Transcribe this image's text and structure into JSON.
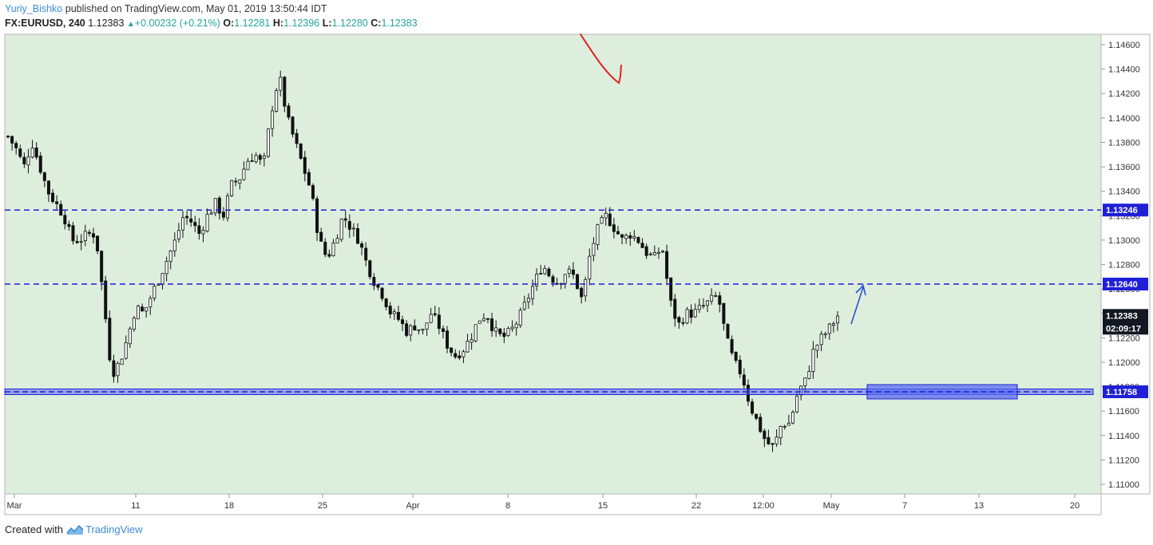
{
  "header": {
    "author": "Yuriy_Bishko",
    "published_text": "published on TradingView.com, May 01, 2019 13:50:44 IDT",
    "symbol": "FX:EURUSD, 240",
    "last": "1.12383",
    "change": "+0.00232 (+0.21%)",
    "o_label": "O:",
    "o_value": "1.12281",
    "h_label": "H:",
    "h_value": "1.12396",
    "l_label": "L:",
    "l_value": "1.12280",
    "c_label": "C:",
    "c_value": "1.12383",
    "up_icon": "triangle-up-icon"
  },
  "footer": {
    "created_with": "Created with",
    "brand": "TradingView",
    "logo_icon": "tradingview-logo-icon"
  },
  "colors": {
    "background": "#ddeedd",
    "candle": "#111111",
    "level_line": "#1f1fd6",
    "zone_fill": "#5a6cf0",
    "arrow_up": "#2b4fd6",
    "arrow_red": "#e02020",
    "label_blue": "#1f1fd6",
    "label_dark": "#131722"
  },
  "chart_data": {
    "type": "candlestick",
    "symbol": "FX:EURUSD",
    "interval": "240",
    "ylim": [
      1.109,
      1.147
    ],
    "y_ticks": [
      "1.14600",
      "1.14400",
      "1.14200",
      "1.14000",
      "1.13800",
      "1.13600",
      "1.13400",
      "1.13200",
      "1.13000",
      "1.12800",
      "1.12600",
      "1.12400",
      "1.12200",
      "1.12000",
      "1.11800",
      "1.11600",
      "1.11400",
      "1.11200",
      "1.11000"
    ],
    "x_ticks": [
      "Mar",
      "11",
      "18",
      "25",
      "Apr",
      "8",
      "15",
      "22",
      "12:00",
      "May",
      "7",
      "13",
      "20"
    ],
    "close_path": [
      1.1385,
      1.1375,
      1.136,
      1.138,
      1.136,
      1.134,
      1.133,
      1.132,
      1.13,
      1.13,
      1.1305,
      1.1305,
      1.125,
      1.119,
      1.12,
      1.122,
      1.1245,
      1.124,
      1.1255,
      1.127,
      1.1285,
      1.13,
      1.132,
      1.1315,
      1.1305,
      1.132,
      1.133,
      1.132,
      1.1345,
      1.135,
      1.1365,
      1.137,
      1.136,
      1.1405,
      1.1435,
      1.14,
      1.138,
      1.136,
      1.134,
      1.13,
      1.1285,
      1.13,
      1.132,
      1.131,
      1.13,
      1.128,
      1.1265,
      1.1255,
      1.124,
      1.1235,
      1.1225,
      1.123,
      1.1225,
      1.124,
      1.123,
      1.1215,
      1.1205,
      1.121,
      1.122,
      1.1235,
      1.124,
      1.1225,
      1.122,
      1.1225,
      1.1235,
      1.125,
      1.1265,
      1.128,
      1.127,
      1.1265,
      1.1275,
      1.127,
      1.125,
      1.129,
      1.131,
      1.132,
      1.131,
      1.13,
      1.1305,
      1.13,
      1.129,
      1.1285,
      1.1295,
      1.125,
      1.123,
      1.124,
      1.124,
      1.1245,
      1.125,
      1.1255,
      1.122,
      1.12,
      1.119,
      1.1165,
      1.115,
      1.1135,
      1.113,
      1.115,
      1.115,
      1.1175,
      1.1185,
      1.121,
      1.122,
      1.1228,
      1.1238
    ],
    "annotations": {
      "horizontal_lines": [
        {
          "price": 1.13246,
          "label": "1.13246",
          "style": "dashed"
        },
        {
          "price": 1.1264,
          "label": "1.12640",
          "style": "dashed"
        },
        {
          "price": 1.11758,
          "label": "1.11758",
          "style": "solid-zone"
        }
      ],
      "last_price_label": "1.12383",
      "countdown_label": "02:09:17",
      "drawings": [
        "blue-arrow-up",
        "red-freehand-arrow",
        "blue-zone-rectangle"
      ]
    }
  }
}
